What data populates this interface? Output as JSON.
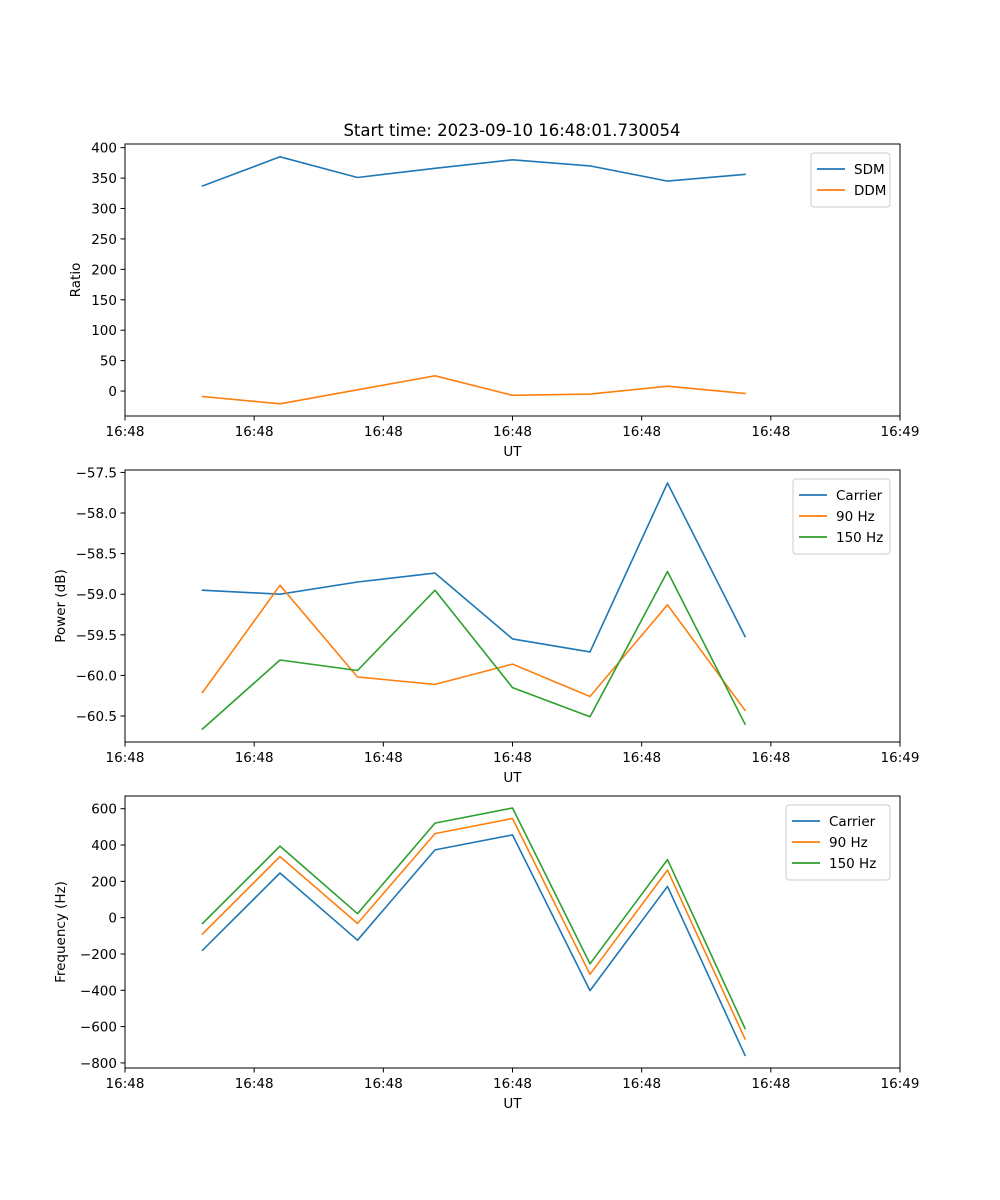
{
  "title": "Start time: 2023-09-10 16:48:01.730054",
  "colors": {
    "blue": "#1f77b4",
    "orange": "#ff7f0e",
    "green": "#2ca02c"
  },
  "chart_data": [
    {
      "type": "line",
      "ylabel": "Ratio",
      "xlabel": "UT",
      "x": [
        1,
        2,
        3,
        4,
        5,
        6,
        7,
        8
      ],
      "xlim": [
        0,
        10
      ],
      "x_ticks": [
        0,
        1.6667,
        3.3333,
        5,
        6.6667,
        8.3333,
        10
      ],
      "x_tick_labels": [
        "16:48",
        "16:48",
        "16:48",
        "16:48",
        "16:48",
        "16:48",
        "16:49"
      ],
      "ylim": [
        -41,
        406
      ],
      "y_ticks": [
        0,
        50,
        100,
        150,
        200,
        250,
        300,
        350,
        400
      ],
      "y_tick_labels": [
        "0",
        "50",
        "100",
        "150",
        "200",
        "250",
        "300",
        "350",
        "400"
      ],
      "legend_position": "top-right",
      "series": [
        {
          "name": "SDM",
          "color": "#1f77b4",
          "values": [
            337,
            385,
            351,
            366,
            380,
            370,
            345,
            356
          ]
        },
        {
          "name": "DDM",
          "color": "#ff7f0e",
          "values": [
            -9,
            -21,
            2,
            25,
            -7,
            -5,
            8,
            -4
          ]
        }
      ]
    },
    {
      "type": "line",
      "ylabel": "Power (dB)",
      "xlabel": "UT",
      "x": [
        1,
        2,
        3,
        4,
        5,
        6,
        7,
        8
      ],
      "xlim": [
        0,
        10
      ],
      "x_ticks": [
        0,
        1.6667,
        3.3333,
        5,
        6.6667,
        8.3333,
        10
      ],
      "x_tick_labels": [
        "16:48",
        "16:48",
        "16:48",
        "16:48",
        "16:48",
        "16:48",
        "16:49"
      ],
      "ylim": [
        -60.82,
        -57.47
      ],
      "y_ticks": [
        -57.5,
        -58.0,
        -58.5,
        -59.0,
        -59.5,
        -60.0,
        -60.5
      ],
      "y_tick_labels": [
        "−57.5",
        "−58.0",
        "−58.5",
        "−59.0",
        "−59.5",
        "−60.0",
        "−60.5"
      ],
      "legend_position": "top-right",
      "series": [
        {
          "name": "Carrier",
          "color": "#1f77b4",
          "values": [
            -58.95,
            -59.0,
            -58.85,
            -58.74,
            -59.55,
            -59.71,
            -57.63,
            -59.52
          ]
        },
        {
          "name": "90 Hz",
          "color": "#ff7f0e",
          "values": [
            -60.21,
            -58.89,
            -60.02,
            -60.11,
            -59.86,
            -60.26,
            -59.13,
            -60.43
          ]
        },
        {
          "name": "150 Hz",
          "color": "#2ca02c",
          "values": [
            -60.66,
            -59.81,
            -59.94,
            -58.95,
            -60.15,
            -60.51,
            -58.72,
            -60.6
          ]
        }
      ]
    },
    {
      "type": "line",
      "ylabel": "Frequency (Hz)",
      "xlabel": "UT",
      "x": [
        1,
        2,
        3,
        4,
        5,
        6,
        7,
        8
      ],
      "xlim": [
        0,
        10
      ],
      "x_ticks": [
        0,
        1.6667,
        3.3333,
        5,
        6.6667,
        8.3333,
        10
      ],
      "x_tick_labels": [
        "16:48",
        "16:48",
        "16:48",
        "16:48",
        "16:48",
        "16:48",
        "16:49"
      ],
      "ylim": [
        -828,
        670
      ],
      "y_ticks": [
        600,
        400,
        200,
        0,
        -200,
        -400,
        -600,
        -800
      ],
      "y_tick_labels": [
        "600",
        "400",
        "200",
        "0",
        "−200",
        "−400",
        "−600",
        "−800"
      ],
      "legend_position": "top-right",
      "series": [
        {
          "name": "Carrier",
          "color": "#1f77b4",
          "values": [
            -180,
            246,
            -124,
            373,
            456,
            -402,
            172,
            -758
          ]
        },
        {
          "name": "90 Hz",
          "color": "#ff7f0e",
          "values": [
            -90,
            336,
            -32,
            463,
            546,
            -312,
            262,
            -668
          ]
        },
        {
          "name": "150 Hz",
          "color": "#2ca02c",
          "values": [
            -32,
            394,
            22,
            521,
            604,
            -254,
            320,
            -610
          ]
        }
      ]
    }
  ]
}
